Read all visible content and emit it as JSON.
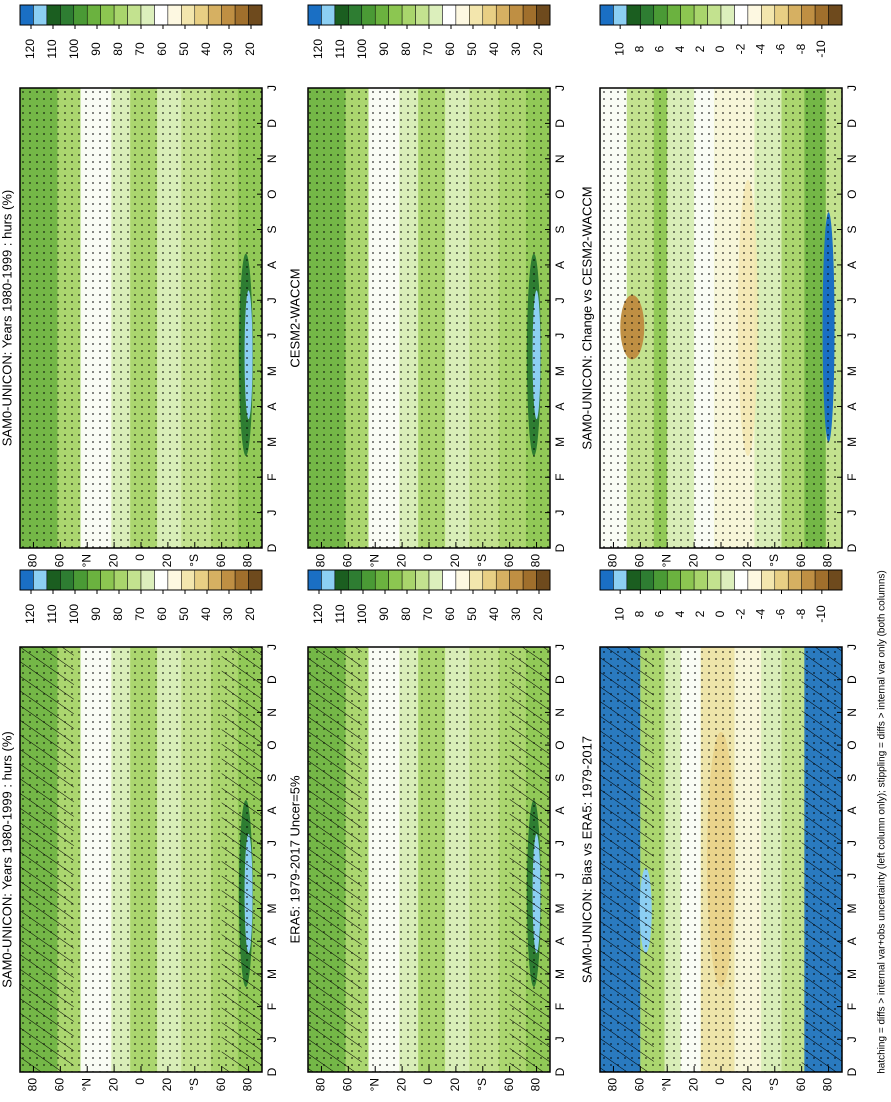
{
  "chart_data": [
    {
      "type": "contour",
      "title": "SAM0-UNICON: Years 1980-1999 : hurs (%)",
      "hatched": true,
      "categories": [
        "D",
        "J",
        "F",
        "M",
        "A",
        "M",
        "J",
        "J",
        "A",
        "S",
        "O",
        "N",
        "D",
        "J"
      ],
      "ylim": [
        90,
        -90
      ],
      "yticks": [
        80,
        60,
        {
          "value": 40,
          "label": "°N"
        },
        20,
        0,
        {
          "value": -20,
          "label": "20"
        },
        {
          "value": -40,
          "label": "°S"
        },
        {
          "value": -60,
          "label": "60"
        },
        {
          "value": -80,
          "label": "80"
        }
      ],
      "clim": [
        125,
        15
      ],
      "cticks": [
        120,
        110,
        100,
        90,
        80,
        70,
        60,
        50,
        40,
        30,
        20
      ],
      "colors": [
        "#1a6fc4",
        "#8ccff3",
        "#1b5e20",
        "#2e7d32",
        "#4a9a35",
        "#6bb23f",
        "#8cc651",
        "#a9d56c",
        "#c3e28f",
        "#dcefbc",
        "#ffffff",
        "#fdf8e1",
        "#f3e6ad",
        "#e8cf84",
        "#d6b062",
        "#bf8f43",
        "#a06f2c",
        "#6e4a1d"
      ]
    },
    {
      "type": "contour",
      "title": "ERA5: 1979-2017 Uncer=5%",
      "hatched": true,
      "categories": [
        "D",
        "J",
        "F",
        "M",
        "A",
        "M",
        "J",
        "J",
        "A",
        "S",
        "O",
        "N",
        "D",
        "J"
      ],
      "ylim": [
        90,
        -90
      ],
      "yticks": [
        80,
        60,
        {
          "value": 40,
          "label": "°N"
        },
        20,
        0,
        {
          "value": -20,
          "label": "20"
        },
        {
          "value": -40,
          "label": "°S"
        },
        {
          "value": -60,
          "label": "60"
        },
        {
          "value": -80,
          "label": "80"
        }
      ],
      "clim": [
        125,
        15
      ],
      "cticks": [
        120,
        110,
        100,
        90,
        80,
        70,
        60,
        50,
        40,
        30,
        20
      ],
      "colors": [
        "#1a6fc4",
        "#8ccff3",
        "#1b5e20",
        "#2e7d32",
        "#4a9a35",
        "#6bb23f",
        "#8cc651",
        "#a9d56c",
        "#c3e28f",
        "#dcefbc",
        "#ffffff",
        "#fdf8e1",
        "#f3e6ad",
        "#e8cf84",
        "#d6b062",
        "#bf8f43",
        "#a06f2c",
        "#6e4a1d"
      ]
    },
    {
      "type": "contour-diff",
      "title": "SAM0-UNICON: Bias vs ERA5: 1979-2017",
      "hatched": true,
      "categories": [
        "D",
        "J",
        "F",
        "M",
        "A",
        "M",
        "J",
        "J",
        "A",
        "S",
        "O",
        "N",
        "D",
        "J"
      ],
      "ylim": [
        90,
        -90
      ],
      "yticks": [
        80,
        60,
        {
          "value": 40,
          "label": "°N"
        },
        20,
        0,
        {
          "value": -20,
          "label": "20"
        },
        {
          "value": -40,
          "label": "°S"
        },
        {
          "value": -60,
          "label": "60"
        },
        {
          "value": -80,
          "label": "80"
        }
      ],
      "clim": [
        12,
        -12
      ],
      "cticks": [
        10,
        8,
        6,
        4,
        2,
        0,
        -2,
        -4,
        -6,
        -8,
        -10
      ],
      "colors": [
        "#1a6fc4",
        "#8ccff3",
        "#1b5e20",
        "#2e7d32",
        "#4a9a35",
        "#6bb23f",
        "#8cc651",
        "#a9d56c",
        "#c3e28f",
        "#dcefbc",
        "#ffffff",
        "#fdf8e1",
        "#f3e6ad",
        "#e8cf84",
        "#d6b062",
        "#bf8f43",
        "#a06f2c",
        "#6e4a1d"
      ]
    },
    {
      "type": "contour",
      "title": "SAM0-UNICON: Years 1980-1999 : hurs (%)",
      "hatched": false,
      "categories": [
        "D",
        "J",
        "F",
        "M",
        "A",
        "M",
        "J",
        "J",
        "A",
        "S",
        "O",
        "N",
        "D",
        "J"
      ],
      "ylim": [
        90,
        -90
      ],
      "yticks": [
        80,
        60,
        {
          "value": 40,
          "label": "°N"
        },
        20,
        0,
        {
          "value": -20,
          "label": "20"
        },
        {
          "value": -40,
          "label": "°S"
        },
        {
          "value": -60,
          "label": "60"
        },
        {
          "value": -80,
          "label": "80"
        }
      ],
      "clim": [
        125,
        15
      ],
      "cticks": [
        120,
        110,
        100,
        90,
        80,
        70,
        60,
        50,
        40,
        30,
        20
      ],
      "colors": [
        "#1a6fc4",
        "#8ccff3",
        "#1b5e20",
        "#2e7d32",
        "#4a9a35",
        "#6bb23f",
        "#8cc651",
        "#a9d56c",
        "#c3e28f",
        "#dcefbc",
        "#ffffff",
        "#fdf8e1",
        "#f3e6ad",
        "#e8cf84",
        "#d6b062",
        "#bf8f43",
        "#a06f2c",
        "#6e4a1d"
      ]
    },
    {
      "type": "contour",
      "title": "CESM2-WACCM",
      "hatched": false,
      "categories": [
        "D",
        "J",
        "F",
        "M",
        "A",
        "M",
        "J",
        "J",
        "A",
        "S",
        "O",
        "N",
        "D",
        "J"
      ],
      "ylim": [
        90,
        -90
      ],
      "yticks": [
        80,
        60,
        {
          "value": 40,
          "label": "°N"
        },
        20,
        0,
        {
          "value": -20,
          "label": "20"
        },
        {
          "value": -40,
          "label": "°S"
        },
        {
          "value": -60,
          "label": "60"
        },
        {
          "value": -80,
          "label": "80"
        }
      ],
      "clim": [
        125,
        15
      ],
      "cticks": [
        120,
        110,
        100,
        90,
        80,
        70,
        60,
        50,
        40,
        30,
        20
      ],
      "colors": [
        "#1a6fc4",
        "#8ccff3",
        "#1b5e20",
        "#2e7d32",
        "#4a9a35",
        "#6bb23f",
        "#8cc651",
        "#a9d56c",
        "#c3e28f",
        "#dcefbc",
        "#ffffff",
        "#fdf8e1",
        "#f3e6ad",
        "#e8cf84",
        "#d6b062",
        "#bf8f43",
        "#a06f2c",
        "#6e4a1d"
      ]
    },
    {
      "type": "contour-diff",
      "title": "SAM0-UNICON: Change vs CESM2-WACCM",
      "hatched": false,
      "categories": [
        "D",
        "J",
        "F",
        "M",
        "A",
        "M",
        "J",
        "J",
        "A",
        "S",
        "O",
        "N",
        "D",
        "J"
      ],
      "ylim": [
        90,
        -90
      ],
      "yticks": [
        80,
        60,
        {
          "value": 40,
          "label": "°N"
        },
        20,
        0,
        {
          "value": -20,
          "label": "20"
        },
        {
          "value": -40,
          "label": "°S"
        },
        {
          "value": -60,
          "label": "60"
        },
        {
          "value": -80,
          "label": "80"
        }
      ],
      "clim": [
        12,
        -12
      ],
      "cticks": [
        10,
        8,
        6,
        4,
        2,
        0,
        -2,
        -4,
        -6,
        -8,
        -10
      ],
      "colors": [
        "#1a6fc4",
        "#8ccff3",
        "#1b5e20",
        "#2e7d32",
        "#4a9a35",
        "#6bb23f",
        "#8cc651",
        "#a9d56c",
        "#c3e28f",
        "#dcefbc",
        "#ffffff",
        "#fdf8e1",
        "#f3e6ad",
        "#e8cf84",
        "#d6b062",
        "#bf8f43",
        "#a06f2c",
        "#6e4a1d"
      ]
    }
  ],
  "footnote": "hatching = diffs > internal var+obs uncertainty (left column only); stippling = diffs > internal var only (both columns)"
}
